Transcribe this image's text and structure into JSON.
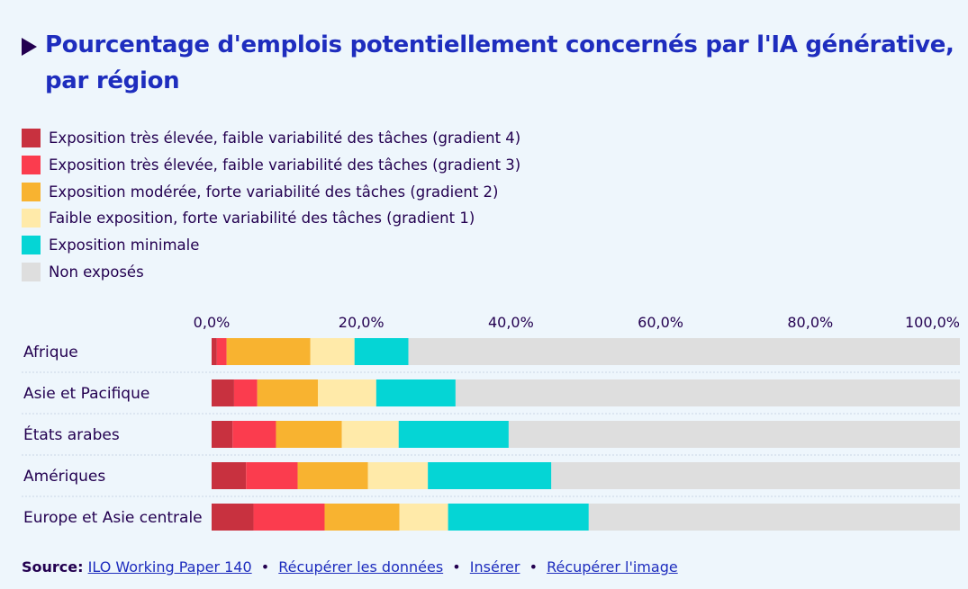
{
  "title": "Pourcentage d'emplois potentiellement concernés par l'IA générative, par région",
  "legend": [
    {
      "label": "Exposition très élevée, faible variabilité des tâches (gradient 4)",
      "color": "#c8313f"
    },
    {
      "label": "Exposition très élevée, faible variabilité des tâches (gradient 3)",
      "color": "#fb3c4e"
    },
    {
      "label": "Exposition modérée, forte variabilité des tâches (gradient 2)",
      "color": "#f8b330"
    },
    {
      "label": "Faible exposition, forte variabilité des tâches (gradient 1)",
      "color": "#ffeaa9"
    },
    {
      "label": "Exposition minimale",
      "color": "#05d5d5"
    },
    {
      "label": "Non exposés",
      "color": "#dedede"
    }
  ],
  "chart_data": {
    "type": "bar",
    "orientation": "horizontal",
    "stacked": true,
    "title": "Pourcentage d'emplois potentiellement concernés par l'IA générative, par région",
    "xlim": [
      0,
      100
    ],
    "x_ticks": [
      "0,0%",
      "20,0%",
      "40,0%",
      "60,0%",
      "80,0%",
      "100,0%"
    ],
    "grid": false,
    "legend_position": "top-left",
    "categories": [
      "Afrique",
      "Asie et Pacifique",
      "États arabes",
      "Amériques",
      "Europe et Asie centrale"
    ],
    "series": [
      {
        "name": "Exposition très élevée, faible variabilité des tâches (gradient 4)",
        "color": "#c8313f",
        "values": [
          0.7,
          3.0,
          2.8,
          4.6,
          5.6
        ]
      },
      {
        "name": "Exposition très élevée, faible variabilité des tâches (gradient 3)",
        "color": "#fb3c4e",
        "values": [
          1.3,
          3.1,
          5.8,
          6.9,
          9.5
        ]
      },
      {
        "name": "Exposition modérée, forte variabilité des tâches (gradient 2)",
        "color": "#f8b330",
        "values": [
          11.2,
          8.1,
          8.8,
          9.4,
          10.0
        ]
      },
      {
        "name": "Faible exposition, forte variabilité des tâches (gradient 1)",
        "color": "#ffeaa9",
        "values": [
          5.9,
          7.8,
          7.6,
          8.0,
          6.5
        ]
      },
      {
        "name": "Exposition minimale",
        "color": "#05d5d5",
        "values": [
          7.2,
          10.6,
          14.7,
          16.5,
          18.8
        ]
      },
      {
        "name": "Non exposés",
        "color": "#dedede",
        "values": [
          73.7,
          67.4,
          60.3,
          54.6,
          49.6
        ]
      }
    ]
  },
  "source": {
    "label": "Source:",
    "link_text": "ILO Working Paper 140",
    "separator": "•",
    "download_data": "Récupérer les données",
    "embed": "Insérer",
    "download_image": "Récupérer l'image"
  }
}
